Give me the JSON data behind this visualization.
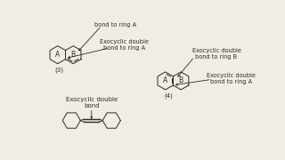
{
  "bg_color": "#f2ede4",
  "text_color": "#2a2a2a",
  "label_top": "bond to ring A",
  "label_3_exo1": "Exocyclic double\nbond to ring A",
  "label_3": "(3)",
  "label_4_exo1": "Exocyclic double\nbond to ring B",
  "label_4_exo2": "Exocyclic double\nbond to ring A",
  "label_4": "(4)",
  "label_bottom_title": "Exocyclic double\nbond",
  "fs": 5.0,
  "lw": 0.7
}
